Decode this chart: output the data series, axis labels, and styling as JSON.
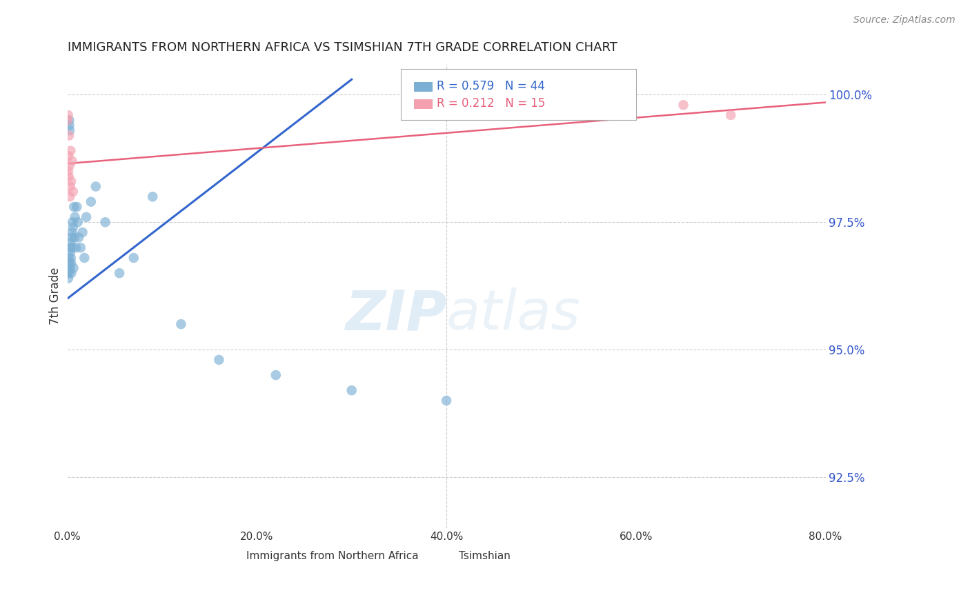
{
  "title": "IMMIGRANTS FROM NORTHERN AFRICA VS TSIMSHIAN 7TH GRADE CORRELATION CHART",
  "source": "Source: ZipAtlas.com",
  "ylabel": "7th Grade",
  "xlim": [
    0.0,
    80.0
  ],
  "ylim": [
    91.5,
    100.6
  ],
  "yticks": [
    92.5,
    95.0,
    97.5,
    100.0
  ],
  "xticks": [
    0.0,
    20.0,
    40.0,
    60.0,
    80.0
  ],
  "xtick_labels": [
    "0.0%",
    "20.0%",
    "40.0%",
    "60.0%",
    "80.0%"
  ],
  "ytick_labels": [
    "92.5%",
    "95.0%",
    "97.5%",
    "100.0%"
  ],
  "blue_R": 0.579,
  "blue_N": 44,
  "pink_R": 0.212,
  "pink_N": 15,
  "blue_color": "#7bafd4",
  "pink_color": "#f4a0b0",
  "blue_line_color": "#3366cc",
  "pink_line_color": "#e8607a",
  "blue_x": [
    0.05,
    0.08,
    0.1,
    0.12,
    0.15,
    0.18,
    0.2,
    0.22,
    0.25,
    0.28,
    0.3,
    0.32,
    0.35,
    0.38,
    0.4,
    0.42,
    0.45,
    0.48,
    0.5,
    0.55,
    0.6,
    0.65,
    0.7,
    0.75,
    0.8,
    0.9,
    1.0,
    1.1,
    1.2,
    1.4,
    1.6,
    1.8,
    2.0,
    2.5,
    3.0,
    4.0,
    5.5,
    7.0,
    9.0,
    12.0,
    16.0,
    22.0,
    30.0,
    40.0
  ],
  "blue_y": [
    96.5,
    96.6,
    96.4,
    96.8,
    96.5,
    96.7,
    99.5,
    99.4,
    99.3,
    96.6,
    96.9,
    97.0,
    97.1,
    96.8,
    96.7,
    96.5,
    97.2,
    97.0,
    97.3,
    97.5,
    97.4,
    96.6,
    97.8,
    97.2,
    97.6,
    97.0,
    97.8,
    97.5,
    97.2,
    97.0,
    97.3,
    96.8,
    97.6,
    97.9,
    98.2,
    97.5,
    96.5,
    96.8,
    98.0,
    95.5,
    94.8,
    94.5,
    94.2,
    94.0
  ],
  "pink_x": [
    0.05,
    0.08,
    0.1,
    0.12,
    0.15,
    0.18,
    0.2,
    0.25,
    0.3,
    0.35,
    0.4,
    0.5,
    0.6,
    65.0,
    70.0
  ],
  "pink_y": [
    99.5,
    99.6,
    98.5,
    98.8,
    98.4,
    99.2,
    98.6,
    98.0,
    98.2,
    98.9,
    98.3,
    98.7,
    98.1,
    99.8,
    99.6
  ],
  "watermark_zip": "ZIP",
  "watermark_atlas": "atlas",
  "legend_label_blue": "Immigrants from Northern Africa",
  "legend_label_pink": "Tsimshian",
  "background_color": "#ffffff",
  "grid_color": "#cccccc"
}
